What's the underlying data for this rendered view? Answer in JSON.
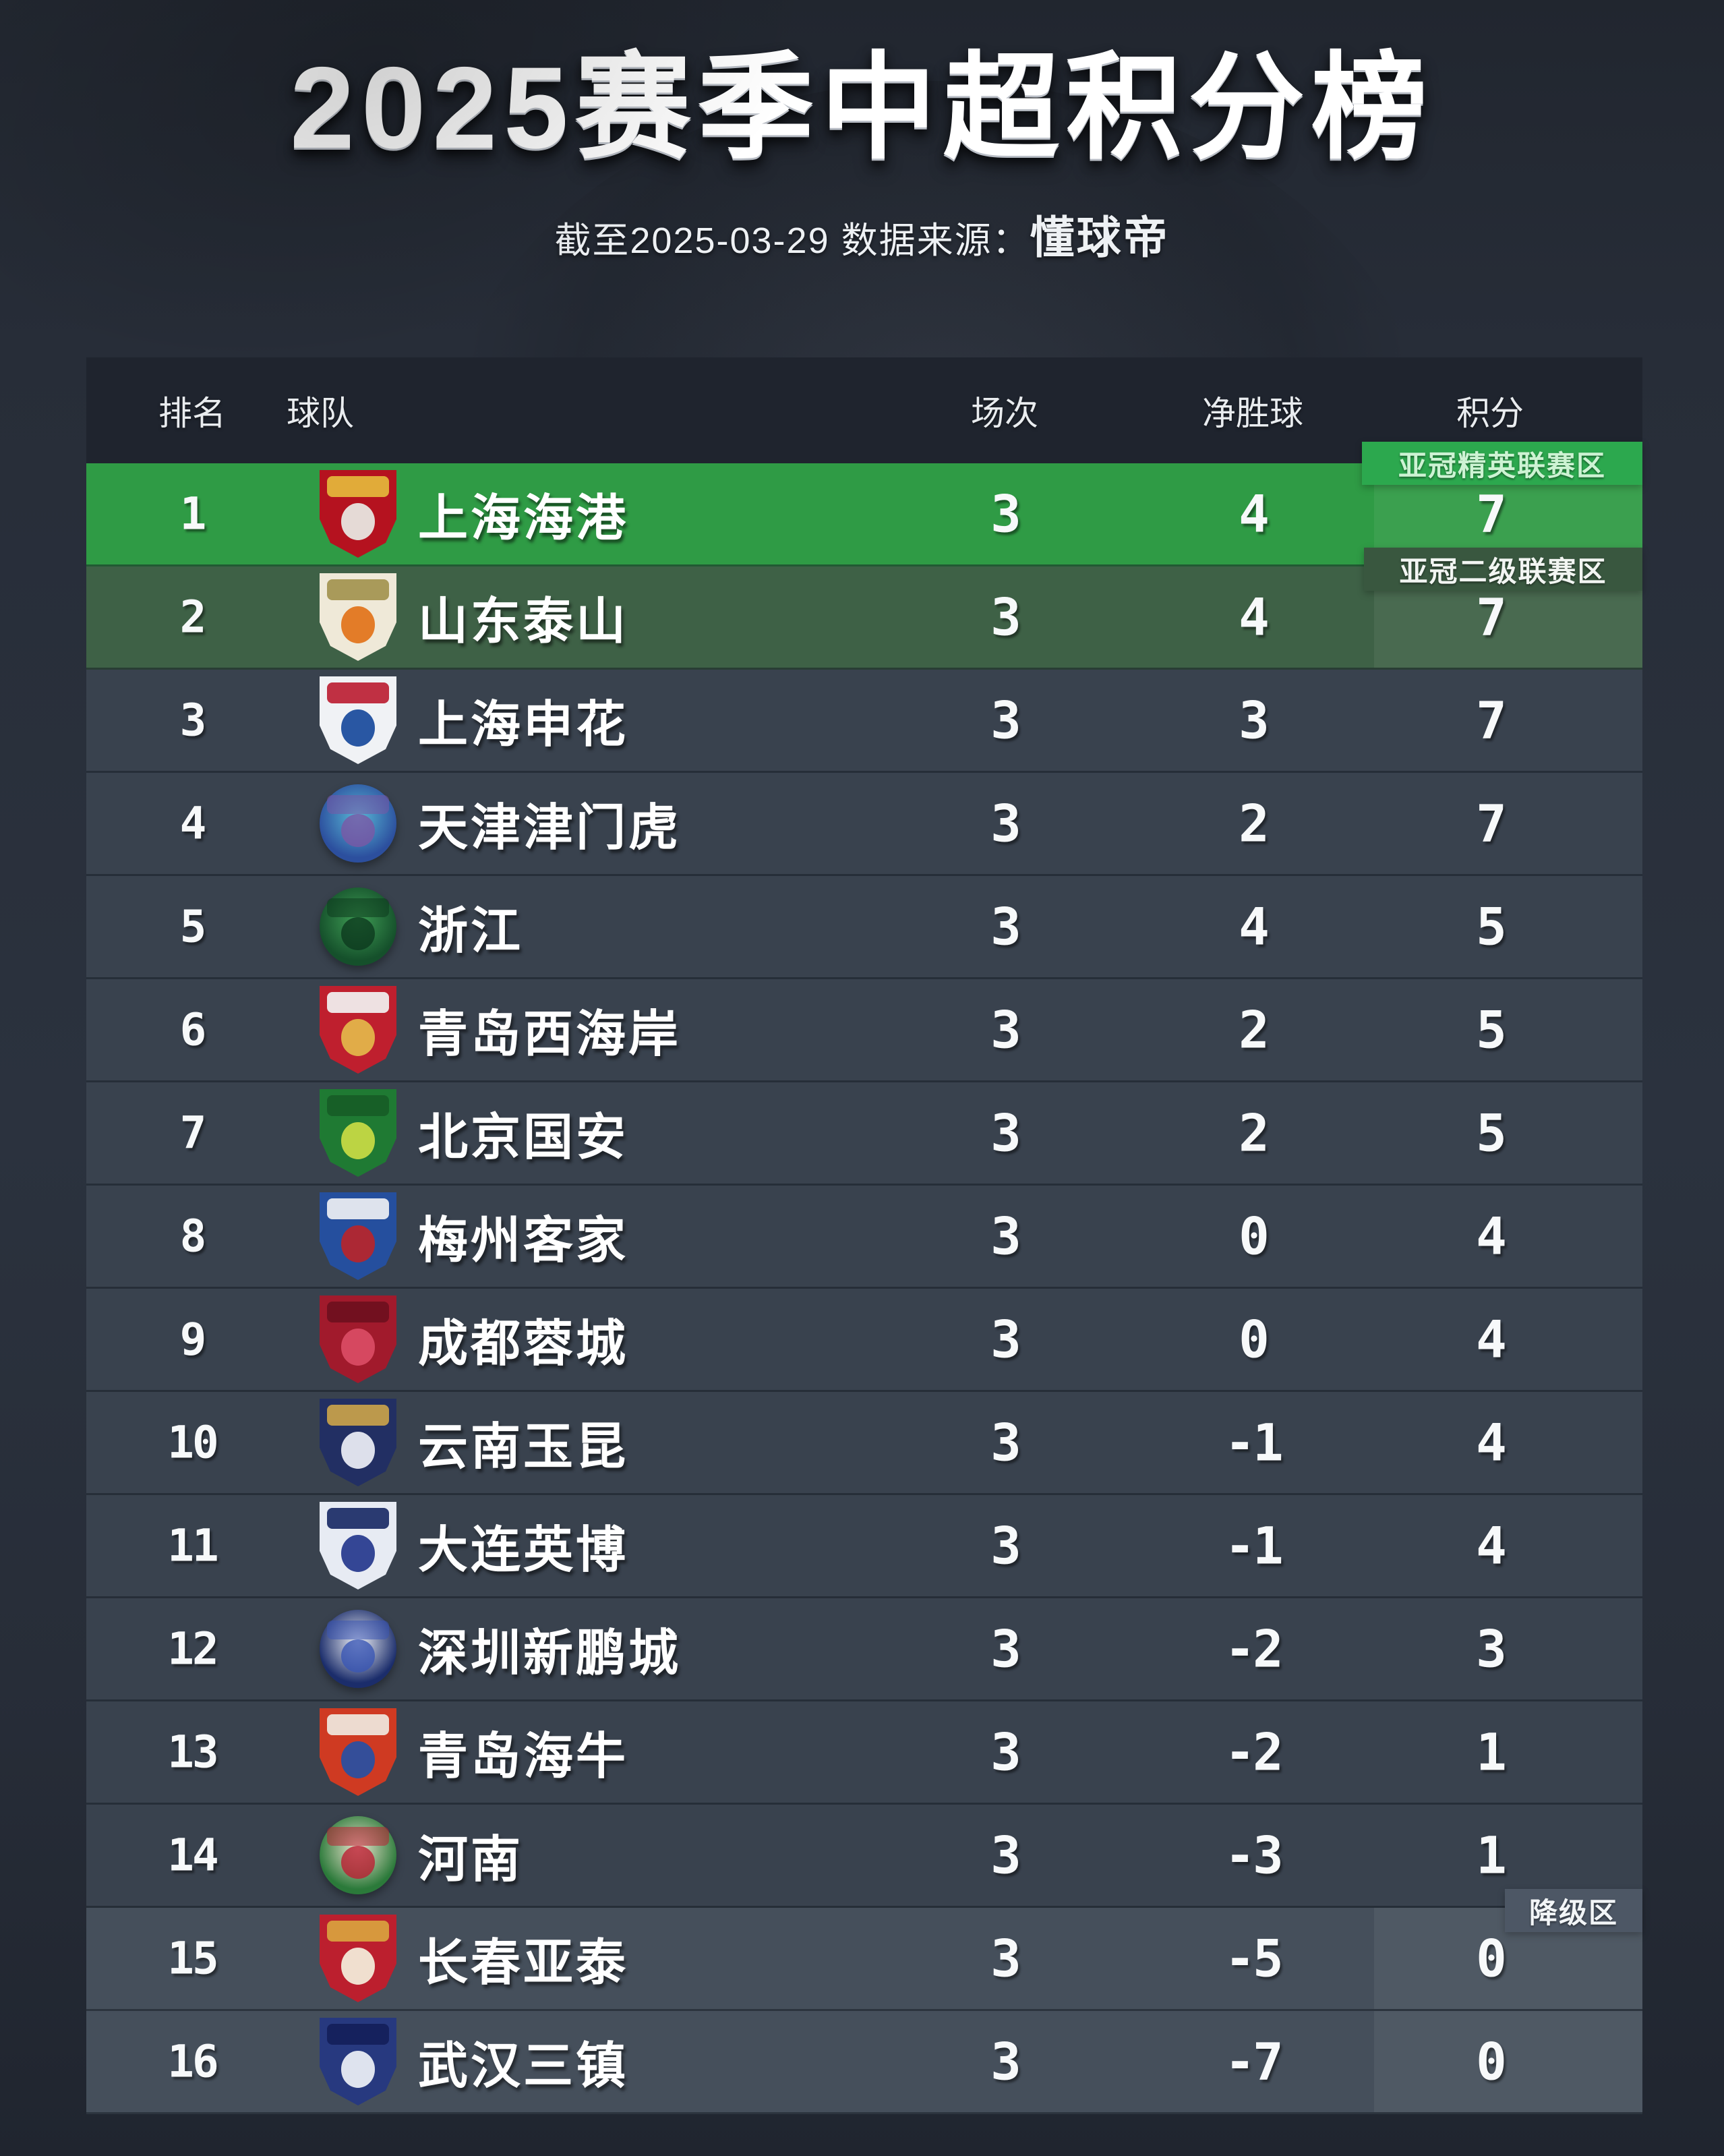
{
  "page": {
    "title": "2025赛季中超积分榜",
    "subtitle_prefix": "截至2025-03-29 数据来源：",
    "subtitle_source": "懂球帝"
  },
  "table": {
    "headers": {
      "rank": "排名",
      "team": "球队",
      "played": "场次",
      "gd": "净胜球",
      "points": "积分"
    },
    "zones": [
      {
        "id": "acl-elite",
        "label": "亚冠精英联赛区",
        "bg": "#2ca84e",
        "text_color": "#cdf3d3"
      },
      {
        "id": "acl-two",
        "label": "亚冠二级联赛区",
        "bg": "#39573f",
        "text_color": "#f2f5f2"
      },
      {
        "id": "relegation",
        "label": "降级区",
        "bg": "#4d5765",
        "text_color": "#f2f5f7"
      }
    ],
    "rows": [
      {
        "rank": "1",
        "team": "上海海港",
        "played": "3",
        "gd": "4",
        "points": "7",
        "zone": "acl-elite",
        "logo": {
          "icon": "shanghai-port-crest-icon",
          "shape": "shield",
          "colors": [
            "#b5121f",
            "#e8e6e0",
            "#e5b93c"
          ]
        }
      },
      {
        "rank": "2",
        "team": "山东泰山",
        "played": "3",
        "gd": "4",
        "points": "7",
        "zone": "acl-two",
        "logo": {
          "icon": "shandong-taishan-crest-icon",
          "shape": "shield",
          "colors": [
            "#efe9d8",
            "#e1761f",
            "#a3934f"
          ]
        }
      },
      {
        "rank": "3",
        "team": "上海申花",
        "played": "3",
        "gd": "3",
        "points": "7",
        "zone": null,
        "logo": {
          "icon": "shanghai-shenhua-crest-icon",
          "shape": "shield",
          "colors": [
            "#f0f2f5",
            "#1d4e9e",
            "#bc1f33"
          ]
        }
      },
      {
        "rank": "4",
        "team": "天津津门虎",
        "played": "3",
        "gd": "2",
        "points": "7",
        "zone": null,
        "logo": {
          "icon": "tianjin-jinmen-tiger-crest-icon",
          "shape": "circle",
          "colors": [
            "#2c4f9e",
            "#58b9d6",
            "#7a57a5"
          ]
        }
      },
      {
        "rank": "5",
        "team": "浙江",
        "played": "3",
        "gd": "4",
        "points": "5",
        "zone": null,
        "logo": {
          "icon": "zhejiang-crest-icon",
          "shape": "circle",
          "colors": [
            "#15502b",
            "#3f9e55",
            "#0d3a1e"
          ]
        }
      },
      {
        "rank": "6",
        "team": "青岛西海岸",
        "played": "3",
        "gd": "2",
        "points": "5",
        "zone": null,
        "logo": {
          "icon": "qingdao-west-coast-crest-icon",
          "shape": "shield",
          "colors": [
            "#bf1f2e",
            "#e3b44a",
            "#f2f2f2"
          ]
        }
      },
      {
        "rank": "7",
        "team": "北京国安",
        "played": "3",
        "gd": "2",
        "points": "5",
        "zone": null,
        "logo": {
          "icon": "beijing-guoan-crest-icon",
          "shape": "shield",
          "colors": [
            "#1f7a33",
            "#c5d944",
            "#175c26"
          ]
        }
      },
      {
        "rank": "8",
        "team": "梅州客家",
        "played": "3",
        "gd": "0",
        "points": "4",
        "zone": null,
        "logo": {
          "icon": "meizhou-hakka-crest-icon",
          "shape": "shield",
          "colors": [
            "#254f9e",
            "#b3262e",
            "#eef0f4"
          ]
        }
      },
      {
        "rank": "9",
        "team": "成都蓉城",
        "played": "3",
        "gd": "0",
        "points": "4",
        "zone": null,
        "logo": {
          "icon": "chengdu-rongcheng-crest-icon",
          "shape": "shield",
          "colors": [
            "#a11a2c",
            "#d94b63",
            "#6e0f1e"
          ]
        }
      },
      {
        "rank": "10",
        "team": "云南玉昆",
        "played": "3",
        "gd": "-1",
        "points": "4",
        "zone": null,
        "logo": {
          "icon": "yunnan-yukun-crest-icon",
          "shape": "shield",
          "colors": [
            "#222f63",
            "#e8eaf2",
            "#caa34a"
          ]
        }
      },
      {
        "rank": "11",
        "team": "大连英博",
        "played": "3",
        "gd": "-1",
        "points": "4",
        "zone": null,
        "logo": {
          "icon": "dalian-yingbo-crest-icon",
          "shape": "shield",
          "colors": [
            "#e7ebf3",
            "#2a3d8f",
            "#1a2a66"
          ]
        }
      },
      {
        "rank": "12",
        "team": "深圳新鹏城",
        "played": "3",
        "gd": "-2",
        "points": "3",
        "zone": null,
        "logo": {
          "icon": "shenzhen-peng-city-crest-icon",
          "shape": "circle",
          "colors": [
            "#1b2d6b",
            "#f0f2f7",
            "#3a56b4"
          ]
        }
      },
      {
        "rank": "13",
        "team": "青岛海牛",
        "played": "3",
        "gd": "-2",
        "points": "1",
        "zone": null,
        "logo": {
          "icon": "qingdao-hainiu-crest-icon",
          "shape": "shield",
          "colors": [
            "#cf3a22",
            "#2b4fa0",
            "#f0e9e0"
          ]
        }
      },
      {
        "rank": "14",
        "team": "河南",
        "played": "3",
        "gd": "-3",
        "points": "1",
        "zone": null,
        "logo": {
          "icon": "henan-crest-icon",
          "shape": "circle",
          "colors": [
            "#2b7a3a",
            "#efe5d0",
            "#bc1f33"
          ]
        }
      },
      {
        "rank": "15",
        "team": "长春亚泰",
        "played": "3",
        "gd": "-5",
        "points": "0",
        "zone": "relegation",
        "logo": {
          "icon": "changchun-yatai-crest-icon",
          "shape": "shield",
          "colors": [
            "#bc1f2e",
            "#f2ead8",
            "#d9a33f"
          ]
        }
      },
      {
        "rank": "16",
        "team": "武汉三镇",
        "played": "3",
        "gd": "-7",
        "points": "0",
        "zone": "relegation",
        "logo": {
          "icon": "wuhan-three-towns-crest-icon",
          "shape": "shield",
          "colors": [
            "#27397f",
            "#e8ecf4",
            "#141f5a"
          ]
        }
      }
    ]
  },
  "colors": {
    "page_bg": "#272d38",
    "header_bg": "#1f242e",
    "row_bg": "#39424e",
    "row_acl_elite_bg": "#2f9b45",
    "row_acl_two_bg": "#3e6146",
    "row_relegation_bg": "#454f5b",
    "text": "#f2f4f6"
  },
  "chart_data": {
    "type": "table",
    "title": "2025赛季中超积分榜",
    "subtitle": "截至2025-03-29 数据来源：懂球帝",
    "columns": [
      "排名",
      "球队",
      "场次",
      "净胜球",
      "积分"
    ],
    "rows": [
      [
        1,
        "上海海港",
        3,
        4,
        7
      ],
      [
        2,
        "山东泰山",
        3,
        4,
        7
      ],
      [
        3,
        "上海申花",
        3,
        3,
        7
      ],
      [
        4,
        "天津津门虎",
        3,
        2,
        7
      ],
      [
        5,
        "浙江",
        3,
        4,
        5
      ],
      [
        6,
        "青岛西海岸",
        3,
        2,
        5
      ],
      [
        7,
        "北京国安",
        3,
        2,
        5
      ],
      [
        8,
        "梅州客家",
        3,
        0,
        4
      ],
      [
        9,
        "成都蓉城",
        3,
        0,
        4
      ],
      [
        10,
        "云南玉昆",
        3,
        -1,
        4
      ],
      [
        11,
        "大连英博",
        3,
        -1,
        4
      ],
      [
        12,
        "深圳新鹏城",
        3,
        -2,
        3
      ],
      [
        13,
        "青岛海牛",
        3,
        -2,
        1
      ],
      [
        14,
        "河南",
        3,
        -3,
        1
      ],
      [
        15,
        "长春亚泰",
        3,
        -5,
        0
      ],
      [
        16,
        "武汉三镇",
        3,
        -7,
        0
      ]
    ],
    "zone_annotations": [
      {
        "label": "亚冠精英联赛区",
        "rows": [
          1
        ]
      },
      {
        "label": "亚冠二级联赛区",
        "rows": [
          2
        ]
      },
      {
        "label": "降级区",
        "rows": [
          15,
          16
        ]
      }
    ]
  }
}
